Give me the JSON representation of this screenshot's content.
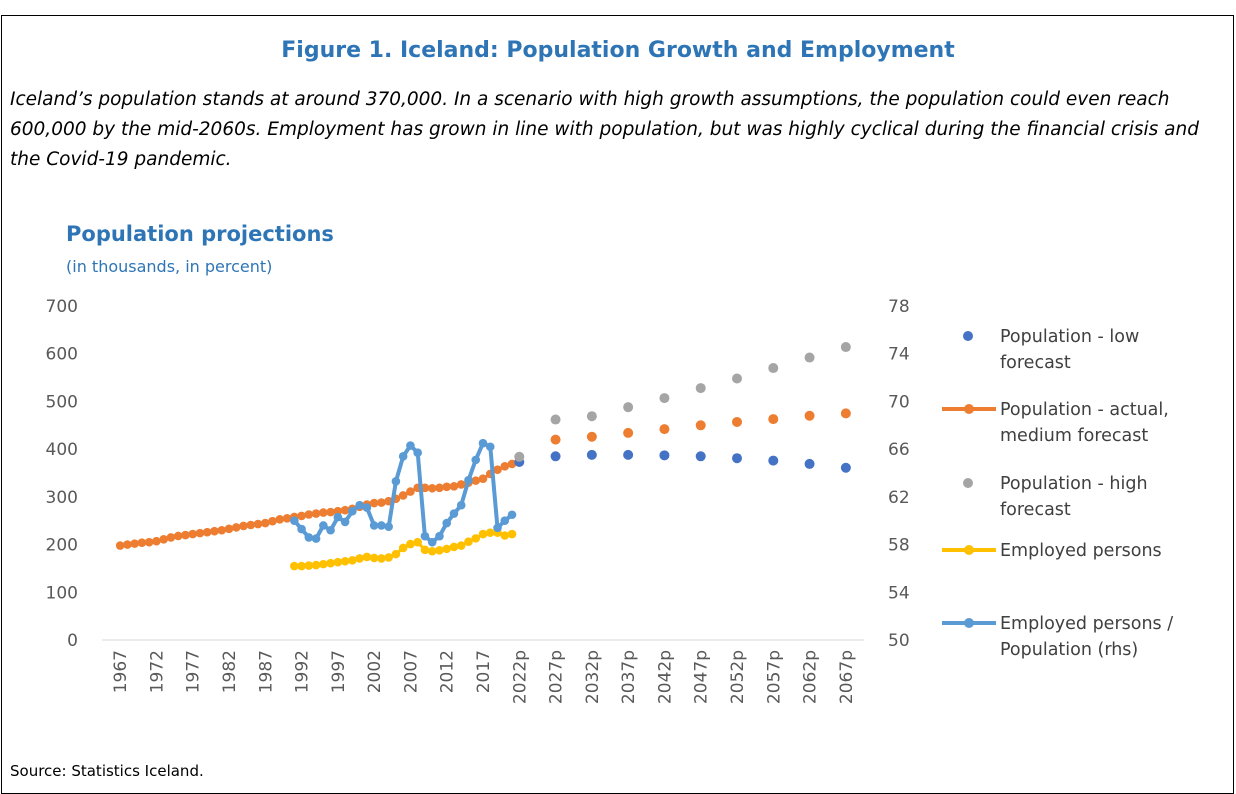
{
  "figure_title": "Figure 1. Iceland: Population Growth and Employment",
  "caption": "Iceland’s population stands at around 370,000. In a scenario with high growth assumptions, the population could even reach 600,000 by the mid-2060s. Employment has grown in line with population, but was highly cyclical during the financial crisis and the Covid-19 pandemic.",
  "source": "Source: Statistics Iceland.",
  "chart_data": {
    "type": "line",
    "title": "Population projections",
    "subtitle": "(in thousands, in percent)",
    "x_tick_labels": [
      "1967",
      "1972",
      "1977",
      "1982",
      "1987",
      "1992",
      "1997",
      "2002",
      "2007",
      "2012",
      "2017",
      "2022p",
      "2027p",
      "2032p",
      "2037p",
      "2042p",
      "2047p",
      "2052p",
      "2057p",
      "2062p",
      "2067p"
    ],
    "y_left": {
      "min": 0,
      "max": 700,
      "ticks": [
        "0",
        "100",
        "200",
        "300",
        "400",
        "500",
        "600",
        "700"
      ]
    },
    "y_right": {
      "min": 50,
      "max": 78,
      "ticks": [
        "50",
        "54",
        "58",
        "62",
        "66",
        "70",
        "74",
        "78"
      ]
    },
    "grid": false,
    "legend_position": "right",
    "colors": {
      "low": "#4472C4",
      "medium": "#ED7D31",
      "high": "#A5A5A5",
      "employed": "#FFC000",
      "ratio": "#5B9BD5"
    },
    "series": [
      {
        "name": "Population - actual, medium forecast",
        "style": "line-markers",
        "axis": "left",
        "color": "#ED7D31",
        "x": [
          1967,
          1968,
          1969,
          1970,
          1971,
          1972,
          1973,
          1974,
          1975,
          1976,
          1977,
          1978,
          1979,
          1980,
          1981,
          1982,
          1983,
          1984,
          1985,
          1986,
          1987,
          1988,
          1989,
          1990,
          1991,
          1992,
          1993,
          1994,
          1995,
          1996,
          1997,
          1998,
          1999,
          2000,
          2001,
          2002,
          2003,
          2004,
          2005,
          2006,
          2007,
          2008,
          2009,
          2010,
          2011,
          2012,
          2013,
          2014,
          2015,
          2016,
          2017,
          2018,
          2019,
          2020,
          2021
        ],
        "values": [
          198,
          200,
          202,
          204,
          205,
          207,
          211,
          215,
          218,
          220,
          222,
          224,
          226,
          228,
          230,
          233,
          236,
          239,
          241,
          243,
          245,
          249,
          253,
          255,
          258,
          260,
          263,
          265,
          267,
          268,
          270,
          272,
          275,
          279,
          284,
          287,
          288,
          291,
          296,
          303,
          311,
          319,
          319,
          318,
          319,
          321,
          322,
          326,
          330,
          334,
          338,
          348,
          357,
          364,
          369
        ]
      },
      {
        "name": "Population - actual, medium forecast",
        "style": "markers",
        "axis": "left",
        "color": "#ED7D31",
        "x": [
          "2027p",
          "2032p",
          "2037p",
          "2042p",
          "2047p",
          "2052p",
          "2057p",
          "2062p",
          "2067p"
        ],
        "values": [
          420,
          426,
          434,
          442,
          450,
          457,
          463,
          470,
          475
        ]
      },
      {
        "name": "Population - low forecast",
        "style": "markers",
        "axis": "left",
        "color": "#4472C4",
        "x": [
          "2022p",
          "2027p",
          "2032p",
          "2037p",
          "2042p",
          "2047p",
          "2052p",
          "2057p",
          "2062p",
          "2067p"
        ],
        "values": [
          373,
          385,
          388,
          388,
          387,
          385,
          381,
          376,
          369,
          361
        ]
      },
      {
        "name": "Population - high forecast",
        "style": "markers",
        "axis": "left",
        "color": "#A5A5A5",
        "x": [
          "2022p",
          "2027p",
          "2032p",
          "2037p",
          "2042p",
          "2047p",
          "2052p",
          "2057p",
          "2062p",
          "2067p"
        ],
        "values": [
          384,
          462,
          469,
          488,
          507,
          528,
          548,
          570,
          592,
          614
        ]
      },
      {
        "name": "Employed persons",
        "style": "line-markers",
        "axis": "left",
        "color": "#FFC000",
        "x": [
          1991,
          1992,
          1993,
          1994,
          1995,
          1996,
          1997,
          1998,
          1999,
          2000,
          2001,
          2002,
          2003,
          2004,
          2005,
          2006,
          2007,
          2008,
          2009,
          2010,
          2011,
          2012,
          2013,
          2014,
          2015,
          2016,
          2017,
          2018,
          2019,
          2020,
          2021
        ],
        "values": [
          155,
          155,
          156,
          157,
          159,
          161,
          163,
          165,
          167,
          171,
          174,
          172,
          171,
          173,
          180,
          193,
          201,
          205,
          189,
          186,
          188,
          191,
          195,
          198,
          206,
          213,
          222,
          225,
          225,
          219,
          222
        ]
      },
      {
        "name": "Employed persons / Population (rhs)",
        "style": "line-markers",
        "axis": "right",
        "color": "#5B9BD5",
        "x": [
          1991,
          1992,
          1993,
          1994,
          1995,
          1996,
          1997,
          1998,
          1999,
          2000,
          2001,
          2002,
          2003,
          2004,
          2005,
          2006,
          2007,
          2008,
          2009,
          2010,
          2011,
          2012,
          2013,
          2014,
          2015,
          2016,
          2017,
          2018,
          2019,
          2020,
          2021
        ],
        "values": [
          60.0,
          59.3,
          58.6,
          58.5,
          59.6,
          59.2,
          60.3,
          59.9,
          60.8,
          61.3,
          61.1,
          59.6,
          59.6,
          59.5,
          63.3,
          65.4,
          66.3,
          65.7,
          58.7,
          58.2,
          58.7,
          59.8,
          60.6,
          61.3,
          63.4,
          65.1,
          66.5,
          66.2,
          59.4,
          60.0,
          60.5
        ]
      }
    ],
    "legend": [
      {
        "label": "Population - low forecast",
        "symbol": "dot",
        "color": "#4472C4",
        "lines": [
          "Population - low",
          "forecast"
        ]
      },
      {
        "label": "Population - actual, medium forecast",
        "symbol": "line",
        "color": "#ED7D31",
        "lines": [
          "Population - actual,",
          "medium forecast"
        ]
      },
      {
        "label": "Population - high forecast",
        "symbol": "dot",
        "color": "#A5A5A5",
        "lines": [
          "Population - high",
          "forecast"
        ]
      },
      {
        "label": "Employed persons",
        "symbol": "line",
        "color": "#FFC000",
        "lines": [
          "Employed persons"
        ]
      },
      {
        "label": "Employed persons / Population (rhs)",
        "symbol": "line",
        "color": "#5B9BD5",
        "lines": [
          "Employed persons /",
          "Population (rhs)"
        ]
      }
    ]
  }
}
